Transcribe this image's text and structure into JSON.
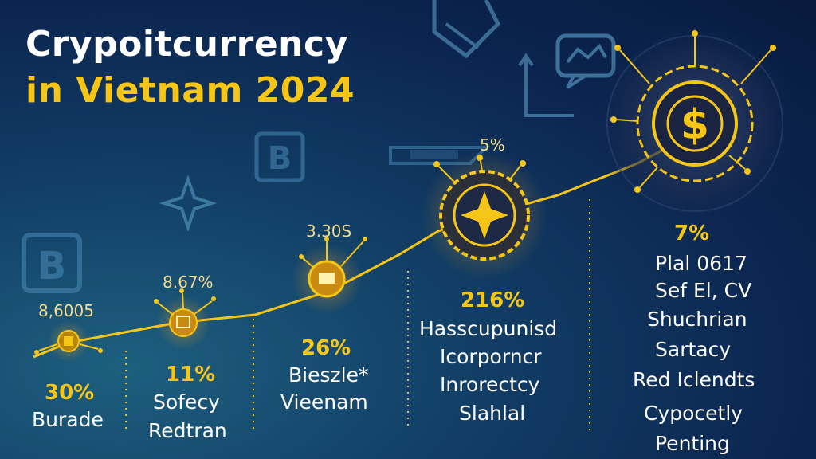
{
  "title": {
    "line1": "Crypoitcurrency",
    "line2": "in Vietnam 2024"
  },
  "colors": {
    "accent": "#f5c518",
    "text": "#ffffff",
    "background": "#0b2550"
  },
  "nodes": [
    {
      "top_value": "8,6005",
      "percent": "30%",
      "lines": [
        "Burade"
      ]
    },
    {
      "top_value": "8.67%",
      "percent": "11%",
      "lines": [
        "Sofecy",
        "Redtran"
      ]
    },
    {
      "top_value": "3.30S",
      "percent": "26%",
      "lines": [
        "Bieszle*",
        "Vieenam"
      ]
    },
    {
      "top_value": "5%",
      "percent": "216%",
      "lines": [
        "Hasscupunisd",
        "Icorporncr",
        "Inrorectcy",
        "Slahlal"
      ]
    },
    {
      "top_value": "",
      "percent": "7%",
      "lines": [
        "Plal 0617",
        "Sef El, CV",
        "Shuchrian",
        "Sartacy",
        "Red Iclendts",
        "Cypocetly",
        "Penting"
      ]
    }
  ],
  "icons": [
    "bitcoin-b-icon",
    "bitcoin-b-icon",
    "sparkle-icon",
    "chart-bubble-icon",
    "tag-icon",
    "arrow-icon",
    "dollar-coin-icon",
    "star-coin-icon",
    "wallet-coin-icon"
  ]
}
